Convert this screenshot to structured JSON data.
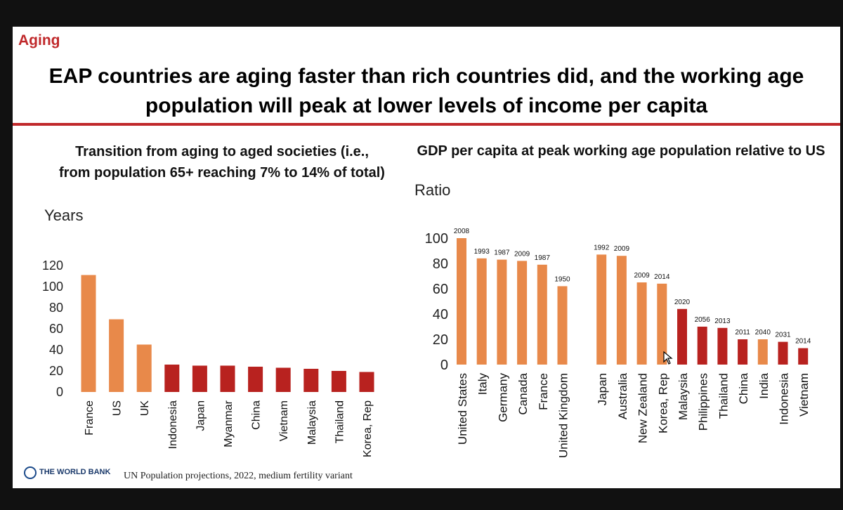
{
  "slide": {
    "section": "Aging",
    "title": "EAP countries are aging faster than rich countries did, and the working age population will peak at lower levels of income per capita",
    "source": "UN Population projections, 2022, medium fertility variant",
    "logo": "THE WORLD BANK"
  },
  "colors": {
    "orange": "#e8894a",
    "red": "#b8221f",
    "accent": "#c0292b"
  },
  "chart_data": [
    {
      "type": "bar",
      "title": "Transition from aging to aged societies (i.e., from population 65+ reaching 7% to 14% of total)",
      "ylabel": "Years",
      "ylim": [
        0,
        120
      ],
      "yticks": [
        0,
        20,
        40,
        60,
        80,
        100,
        120
      ],
      "categories": [
        "France",
        "US",
        "UK",
        "Indonesia",
        "Japan",
        "Myanmar",
        "China",
        "Vietnam",
        "Malaysia",
        "Thailand",
        "Korea, Rep"
      ],
      "values": [
        111,
        69,
        45,
        26,
        25,
        25,
        24,
        23,
        22,
        20,
        19
      ],
      "bar_colors": [
        "orange",
        "orange",
        "orange",
        "red",
        "red",
        "red",
        "red",
        "red",
        "red",
        "red",
        "red"
      ]
    },
    {
      "type": "bar",
      "title": "GDP per capita at peak working age population relative to US",
      "ylabel": "Ratio",
      "ylim": [
        0,
        100
      ],
      "yticks": [
        0,
        20,
        40,
        60,
        80,
        100
      ],
      "categories": [
        "United States",
        "Italy",
        "Germany",
        "Canada",
        "France",
        "United Kingdom",
        "Japan",
        "Australia",
        "New Zealand",
        "Korea, Rep",
        "Malaysia",
        "Philippines",
        "Thailand",
        "China",
        "India",
        "Indonesia",
        "Vietnam"
      ],
      "values": [
        100,
        84,
        83,
        82,
        79,
        62,
        87,
        86,
        65,
        64,
        44,
        30,
        29,
        20,
        20,
        18,
        13
      ],
      "labels": [
        "2008",
        "1993",
        "1987",
        "2009",
        "1987",
        "1950",
        "1992",
        "2009",
        "2009",
        "2014",
        "2020",
        "2056",
        "2013",
        "2011",
        "2040",
        "2031",
        "2014"
      ],
      "bar_colors": [
        "orange",
        "orange",
        "orange",
        "orange",
        "orange",
        "orange",
        "orange",
        "orange",
        "orange",
        "orange",
        "red",
        "red",
        "red",
        "red",
        "orange",
        "red",
        "red"
      ],
      "gap_after_index": 5
    }
  ]
}
